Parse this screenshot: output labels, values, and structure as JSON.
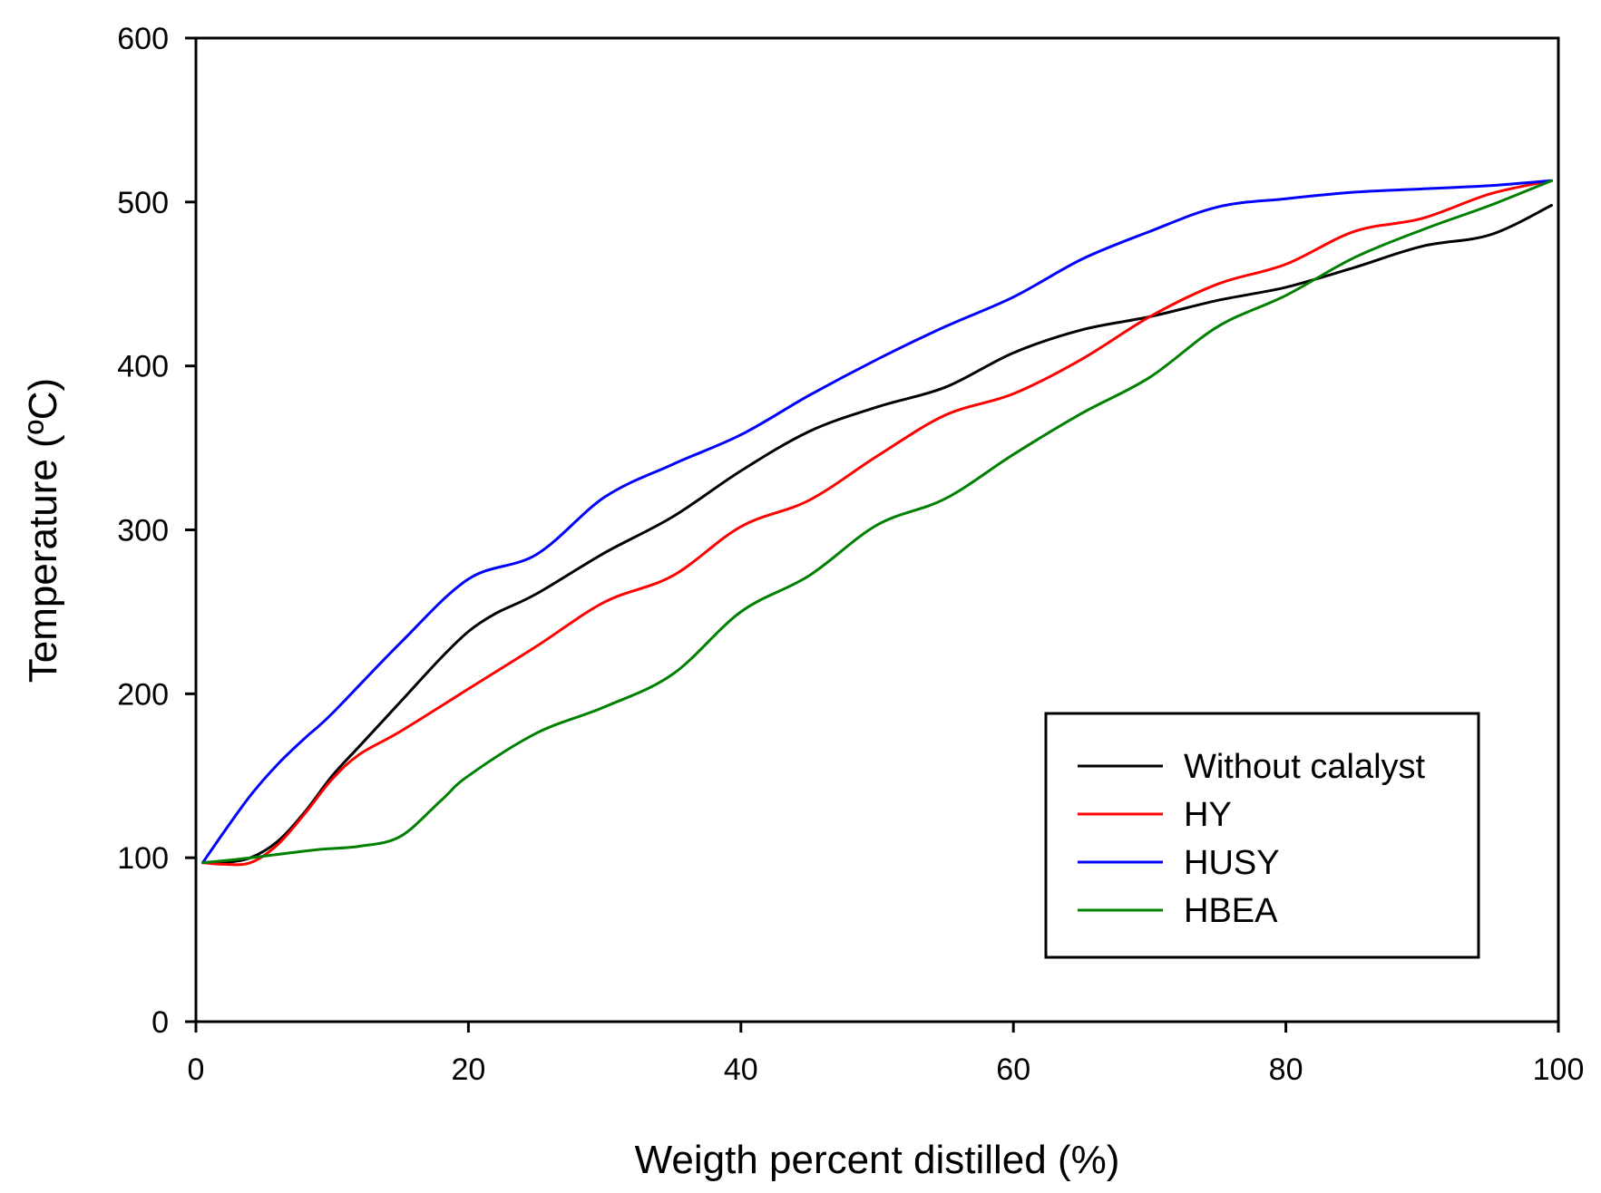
{
  "chart_data": {
    "type": "line",
    "title": "",
    "xlabel": "Weigth percent distilled (%)",
    "ylabel": "Temperature (ºC)",
    "xlim": [
      0,
      100
    ],
    "ylim": [
      0,
      600
    ],
    "xticks": [
      0,
      20,
      40,
      60,
      80,
      100
    ],
    "yticks": [
      0,
      100,
      200,
      300,
      400,
      500,
      600
    ],
    "grid": false,
    "legend_position": "bottom-right",
    "series": [
      {
        "name": "Without calalyst",
        "color": "#000000",
        "x": [
          0.5,
          2,
          4,
          6,
          8,
          10,
          12,
          15,
          18,
          20,
          22,
          25,
          30,
          35,
          40,
          45,
          50,
          55,
          60,
          65,
          70,
          75,
          80,
          85,
          90,
          95,
          99.5
        ],
        "y": [
          97,
          97,
          100,
          110,
          128,
          150,
          168,
          195,
          222,
          238,
          249,
          261,
          286,
          308,
          336,
          360,
          375,
          387,
          408,
          422,
          430,
          440,
          448,
          460,
          473,
          480,
          498
        ]
      },
      {
        "name": "HY",
        "color": "#ff0000",
        "x": [
          0.5,
          2,
          4,
          6,
          8,
          10,
          12,
          15,
          20,
          25,
          30,
          35,
          40,
          45,
          50,
          55,
          60,
          65,
          70,
          75,
          80,
          85,
          90,
          95,
          99.5
        ],
        "y": [
          97,
          96,
          97,
          108,
          127,
          148,
          163,
          177,
          203,
          229,
          256,
          272,
          302,
          318,
          345,
          370,
          383,
          404,
          430,
          450,
          462,
          482,
          490,
          505,
          513
        ]
      },
      {
        "name": "HUSY",
        "color": "#0000ff",
        "x": [
          0.5,
          2,
          4,
          6,
          8,
          10,
          15,
          20,
          25,
          30,
          35,
          40,
          45,
          50,
          55,
          60,
          65,
          70,
          75,
          80,
          85,
          90,
          95,
          99.5
        ],
        "y": [
          97,
          115,
          138,
          157,
          173,
          188,
          231,
          270,
          285,
          320,
          340,
          358,
          382,
          404,
          424,
          442,
          465,
          482,
          497,
          502,
          506,
          508,
          510,
          513
        ]
      },
      {
        "name": "HBEA",
        "color": "#008000",
        "x": [
          0.5,
          3,
          6,
          9,
          12,
          15,
          18,
          20,
          25,
          30,
          35,
          40,
          45,
          50,
          55,
          60,
          65,
          70,
          75,
          80,
          85,
          90,
          95,
          99.5
        ],
        "y": [
          97,
          99,
          102,
          105,
          107,
          113,
          135,
          150,
          176,
          192,
          212,
          250,
          272,
          303,
          319,
          346,
          371,
          393,
          424,
          443,
          466,
          483,
          498,
          513
        ]
      }
    ]
  }
}
